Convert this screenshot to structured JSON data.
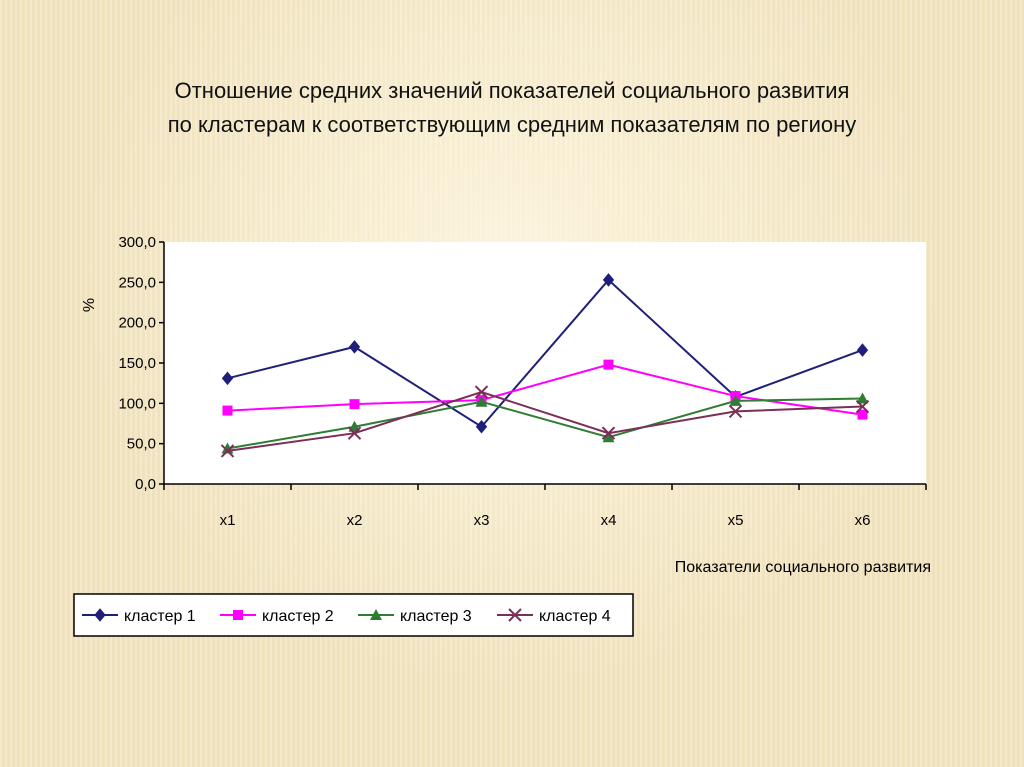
{
  "title": {
    "line1": "Отношение средних значений показателей социального развития",
    "line2": "по кластерам  к соответствующим средним показателям по региону"
  },
  "colors": {
    "cluster1": "#1f1f7a",
    "cluster2": "#ff00ff",
    "cluster3": "#2e7d32",
    "cluster4": "#7b2e58",
    "plot_bg": "#ffffff",
    "axis": "#000000"
  },
  "chart_data": {
    "type": "line",
    "categories": [
      "x1",
      "x2",
      "x3",
      "x4",
      "x5",
      "x6"
    ],
    "series": [
      {
        "name": "кластер 1",
        "marker": "diamond",
        "values": [
          131,
          170,
          71,
          253,
          108,
          166
        ]
      },
      {
        "name": "кластер 2",
        "marker": "square",
        "values": [
          91,
          99,
          104,
          148,
          109,
          86
        ]
      },
      {
        "name": "кластер 3",
        "marker": "triangle",
        "values": [
          44,
          71,
          102,
          58,
          103,
          106
        ]
      },
      {
        "name": "кластер 4",
        "marker": "cross",
        "values": [
          41,
          63,
          114,
          63,
          90,
          96
        ]
      }
    ],
    "ylim": [
      0,
      300
    ],
    "yticks": [
      "300,0",
      "250,0",
      "200,0",
      "150,0",
      "100,0",
      "50,0",
      "0,0"
    ],
    "ylabel": "%",
    "xlabel": "Показатели социального развития",
    "grid": false,
    "legend": "bottom"
  }
}
